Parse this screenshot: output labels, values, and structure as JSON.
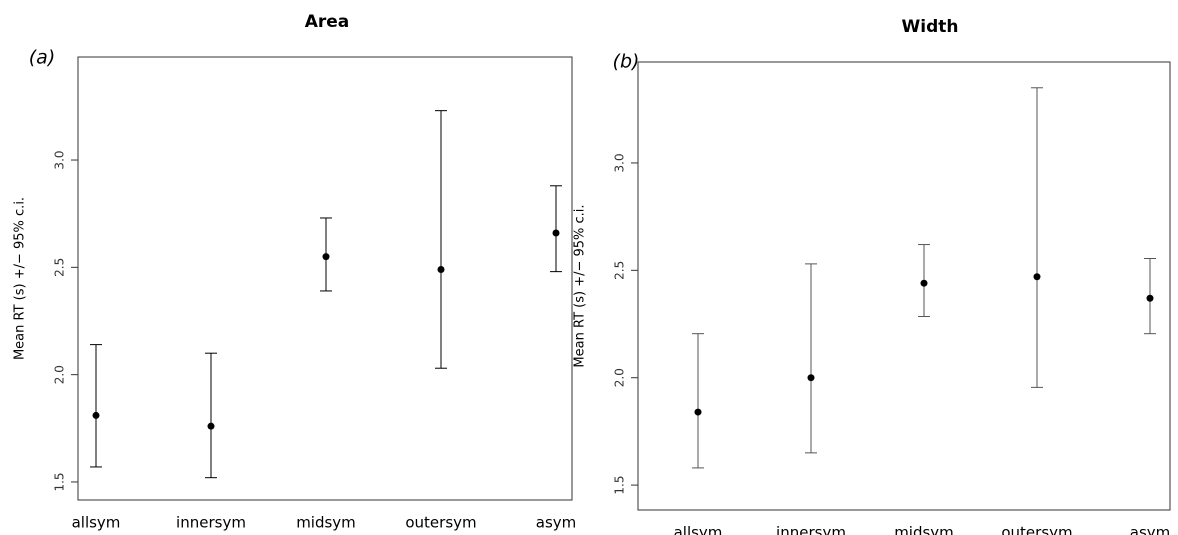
{
  "chart_data": [
    {
      "type": "errorbar",
      "panel": "(a)",
      "title": "Area",
      "y_label": "Mean RT (s) +/− 95% c.i.",
      "categories": [
        "allsym",
        "innersym",
        "midsym",
        "outersym",
        "asym"
      ],
      "series": [
        {
          "color": "#000000",
          "values": [
            1.81,
            1.76,
            2.55,
            2.49,
            2.66
          ],
          "lower": [
            1.57,
            1.52,
            2.39,
            2.03,
            2.48
          ],
          "upper": [
            2.14,
            2.1,
            2.73,
            3.23,
            2.88
          ]
        }
      ],
      "ylim": [
        1.416,
        3.48
      ],
      "yticks": [
        1.5,
        {
          "value": 2,
          "label": "2.0"
        },
        2.5,
        {
          "value": 3,
          "label": "3.0"
        }
      ]
    },
    {
      "type": "errorbar",
      "panel": "(b)",
      "title": "Width",
      "y_label": "Mean RT (s) +/− 95% c.i.",
      "categories": [
        "allsym",
        "innersym",
        "midsym",
        "outersym",
        "asym"
      ],
      "series": [
        {
          "color": "#000000",
          "values": [
            1.84,
            2.0,
            2.44,
            2.47,
            2.37
          ],
          "lower": [
            1.58,
            1.65,
            2.285,
            1.955,
            2.205
          ],
          "upper": [
            2.205,
            2.53,
            2.62,
            3.35,
            2.555
          ]
        }
      ],
      "ylim": [
        1.384,
        3.47
      ],
      "yticks": [
        1.5,
        {
          "value": 2,
          "label": "2.0"
        },
        2.5,
        {
          "value": 3,
          "label": "3.0"
        }
      ]
    }
  ]
}
